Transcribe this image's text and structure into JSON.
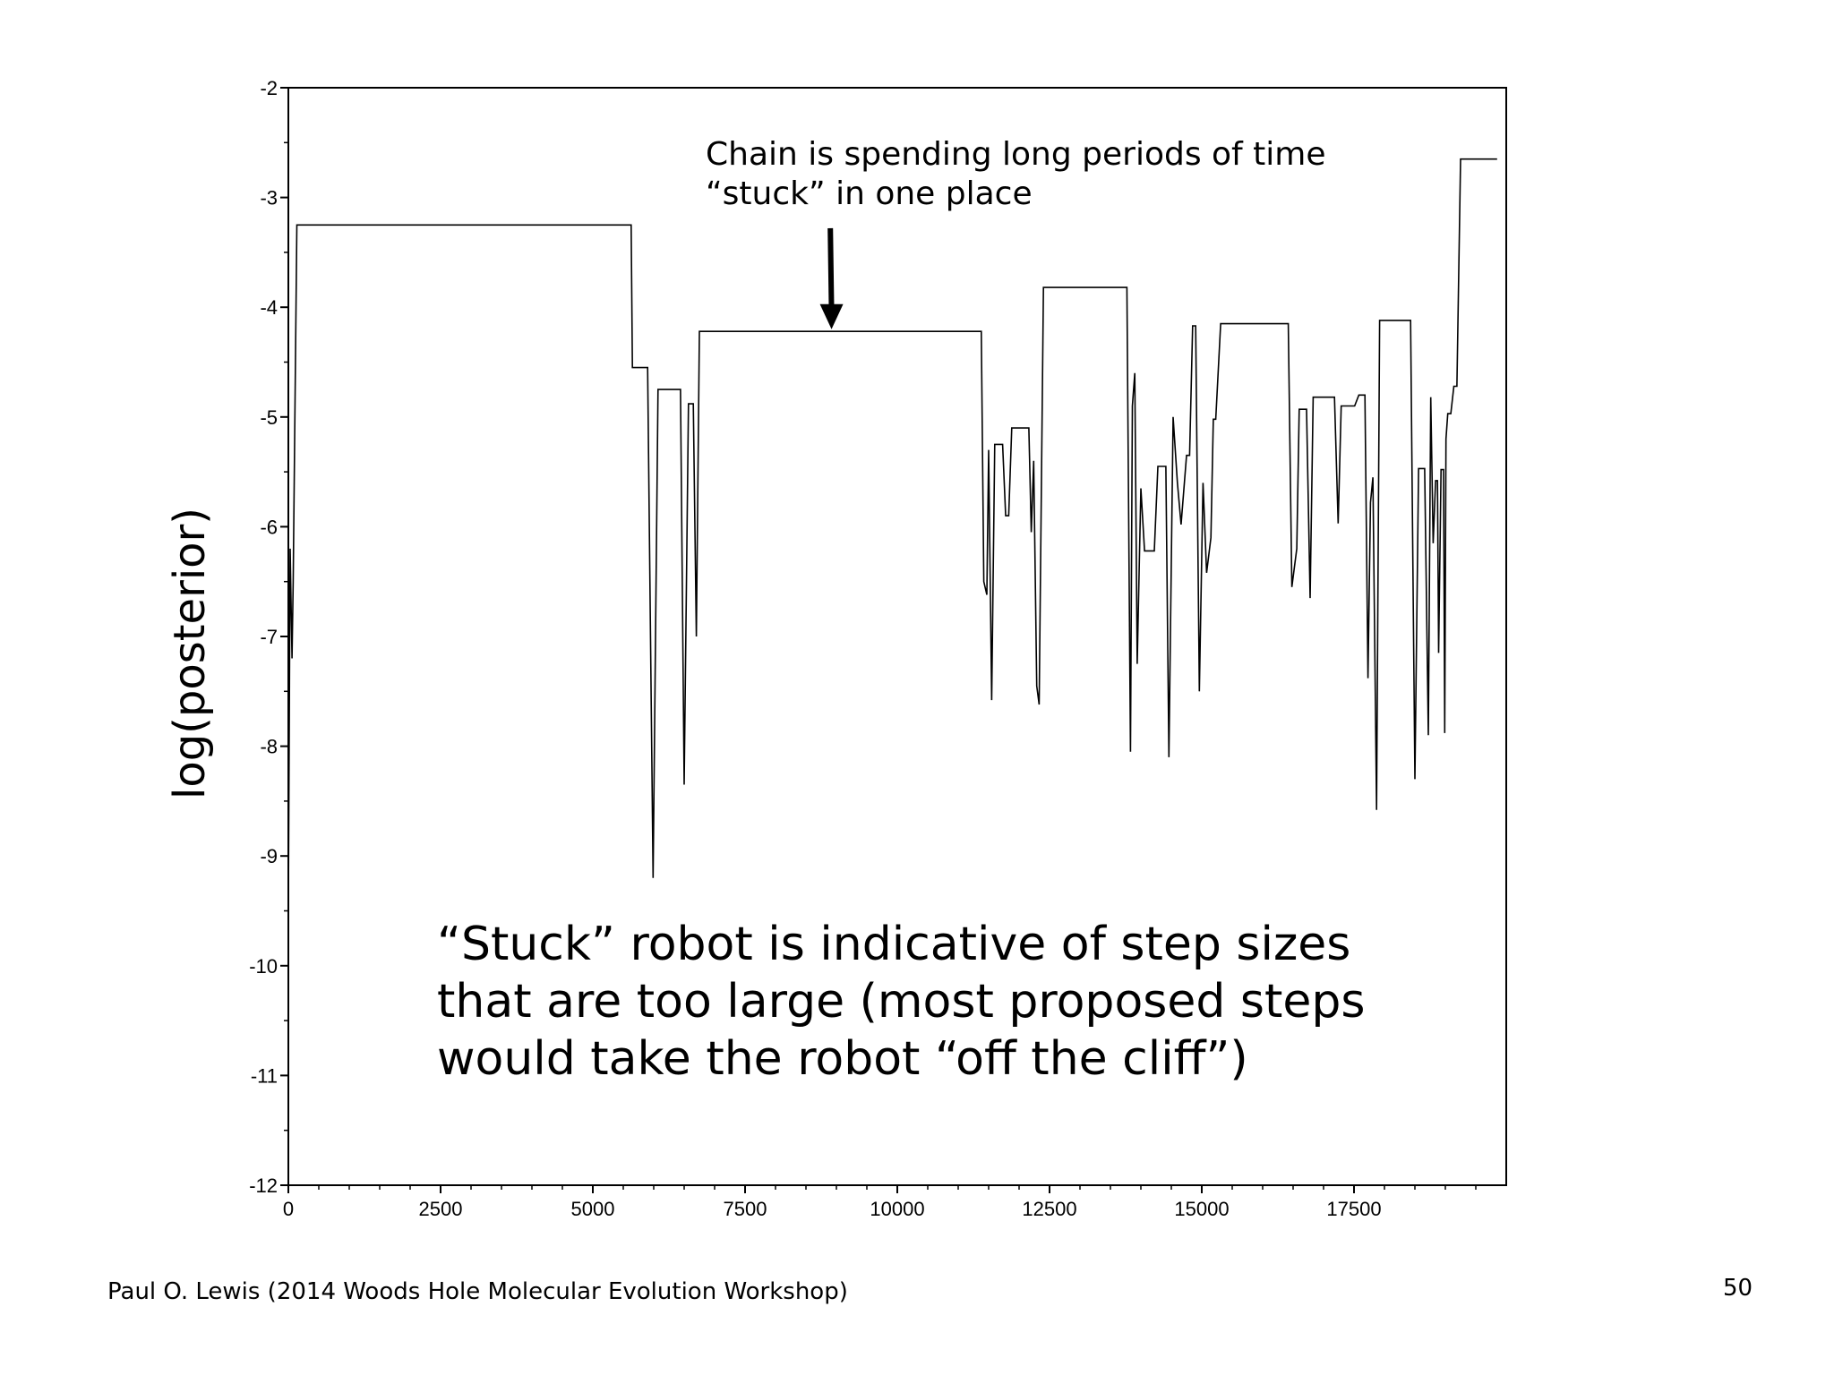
{
  "chart_data": {
    "type": "line",
    "ylabel": "log(posterior)",
    "xlim": [
      0,
      20000
    ],
    "ylim": [
      -12,
      -2
    ],
    "x_ticks": [
      0,
      2500,
      5000,
      7500,
      10000,
      12500,
      15000,
      17500
    ],
    "x_tick_labels": [
      "0",
      "2500",
      "5000",
      "7500",
      "10000",
      "12500",
      "15000",
      "17500"
    ],
    "y_ticks": [
      -2,
      -3,
      -4,
      -5,
      -6,
      -7,
      -8,
      -9,
      -10,
      -11,
      -12
    ],
    "y_tick_labels": [
      "-2",
      "-3",
      "-4",
      "-5",
      "-6",
      "-7",
      "-8",
      "-9",
      "-10",
      "-11",
      "-12"
    ],
    "grid": false,
    "series": [
      {
        "points": [
          [
            0,
            -9.45
          ],
          [
            30,
            -6.2
          ],
          [
            60,
            -7.2
          ],
          [
            80,
            -6.5
          ],
          [
            140,
            -3.25
          ],
          [
            5630,
            -3.25
          ],
          [
            5650,
            -4.55
          ],
          [
            5900,
            -4.55
          ],
          [
            5990,
            -9.2
          ],
          [
            6070,
            -4.75
          ],
          [
            6440,
            -4.75
          ],
          [
            6500,
            -8.35
          ],
          [
            6570,
            -4.88
          ],
          [
            6650,
            -4.88
          ],
          [
            6700,
            -7.0
          ],
          [
            6750,
            -4.22
          ],
          [
            11380,
            -4.22
          ],
          [
            11420,
            -6.5
          ],
          [
            11470,
            -6.62
          ],
          [
            11500,
            -5.3
          ],
          [
            11550,
            -7.58
          ],
          [
            11600,
            -5.25
          ],
          [
            11730,
            -5.25
          ],
          [
            11780,
            -5.9
          ],
          [
            11830,
            -5.9
          ],
          [
            11880,
            -5.1
          ],
          [
            12160,
            -5.1
          ],
          [
            12200,
            -6.05
          ],
          [
            12240,
            -5.4
          ],
          [
            12290,
            -7.45
          ],
          [
            12330,
            -7.62
          ],
          [
            12400,
            -3.82
          ],
          [
            13770,
            -3.82
          ],
          [
            13830,
            -8.05
          ],
          [
            13860,
            -4.9
          ],
          [
            13900,
            -4.6
          ],
          [
            13940,
            -7.25
          ],
          [
            14000,
            -5.65
          ],
          [
            14060,
            -6.22
          ],
          [
            14220,
            -6.22
          ],
          [
            14280,
            -5.45
          ],
          [
            14410,
            -5.45
          ],
          [
            14460,
            -8.1
          ],
          [
            14530,
            -5.0
          ],
          [
            14600,
            -5.6
          ],
          [
            14660,
            -5.98
          ],
          [
            14750,
            -5.35
          ],
          [
            14800,
            -5.35
          ],
          [
            14850,
            -4.17
          ],
          [
            14900,
            -4.17
          ],
          [
            14960,
            -7.5
          ],
          [
            15020,
            -5.6
          ],
          [
            15080,
            -6.42
          ],
          [
            15150,
            -6.1
          ],
          [
            15190,
            -5.02
          ],
          [
            15230,
            -5.02
          ],
          [
            15310,
            -4.15
          ],
          [
            16420,
            -4.15
          ],
          [
            16480,
            -6.55
          ],
          [
            16560,
            -6.2
          ],
          [
            16600,
            -4.93
          ],
          [
            16720,
            -4.93
          ],
          [
            16780,
            -6.65
          ],
          [
            16830,
            -4.82
          ],
          [
            17180,
            -4.82
          ],
          [
            17240,
            -5.97
          ],
          [
            17290,
            -4.9
          ],
          [
            17510,
            -4.9
          ],
          [
            17580,
            -4.8
          ],
          [
            17680,
            -4.8
          ],
          [
            17730,
            -7.38
          ],
          [
            17770,
            -5.78
          ],
          [
            17810,
            -5.55
          ],
          [
            17870,
            -8.58
          ],
          [
            17920,
            -4.12
          ],
          [
            18430,
            -4.12
          ],
          [
            18500,
            -8.3
          ],
          [
            18560,
            -5.47
          ],
          [
            18660,
            -5.47
          ],
          [
            18720,
            -7.9
          ],
          [
            18760,
            -4.82
          ],
          [
            18800,
            -6.15
          ],
          [
            18840,
            -5.58
          ],
          [
            18870,
            -5.58
          ],
          [
            18890,
            -7.15
          ],
          [
            18930,
            -5.48
          ],
          [
            18970,
            -5.48
          ],
          [
            18990,
            -7.88
          ],
          [
            19010,
            -5.2
          ],
          [
            19040,
            -4.97
          ],
          [
            19090,
            -4.97
          ],
          [
            19140,
            -4.72
          ],
          [
            19190,
            -4.72
          ],
          [
            19250,
            -2.65
          ],
          [
            19850,
            -2.65
          ]
        ]
      }
    ],
    "annotations": [
      {
        "id": "stuck-note",
        "lines": [
          "Chain is spending long periods of time",
          "“stuck” in one place"
        ],
        "arrow_from": [
          8900,
          -3.28
        ],
        "arrow_to": [
          8920,
          -4.2
        ]
      },
      {
        "id": "explanation",
        "lines": [
          "“Stuck” robot is indicative of  step sizes",
          "that are too large (most proposed steps",
          "would take the robot “off the cliff”)"
        ]
      }
    ]
  },
  "footer": {
    "credit": "Paul O. Lewis (2014 Woods Hole Molecular Evolution Workshop)",
    "page_number": "50"
  }
}
